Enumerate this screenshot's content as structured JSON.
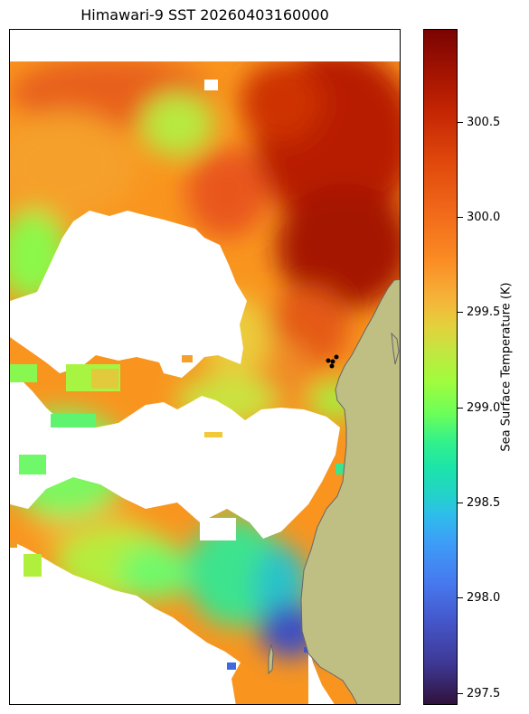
{
  "title": "Himawari-9 SST 20260403160000",
  "colorbar": {
    "label": "Sea Surface Temperature (K)",
    "ticks": [
      "300.5",
      "300.0",
      "299.5",
      "299.0",
      "298.5",
      "298.0",
      "297.5"
    ],
    "range": [
      297.43,
      300.97
    ],
    "colormap": "turbo"
  },
  "colors": {
    "land": "#bfbf84",
    "no_data": "#ffffff",
    "coastline": "#666666",
    "marker": "#000000"
  }
}
